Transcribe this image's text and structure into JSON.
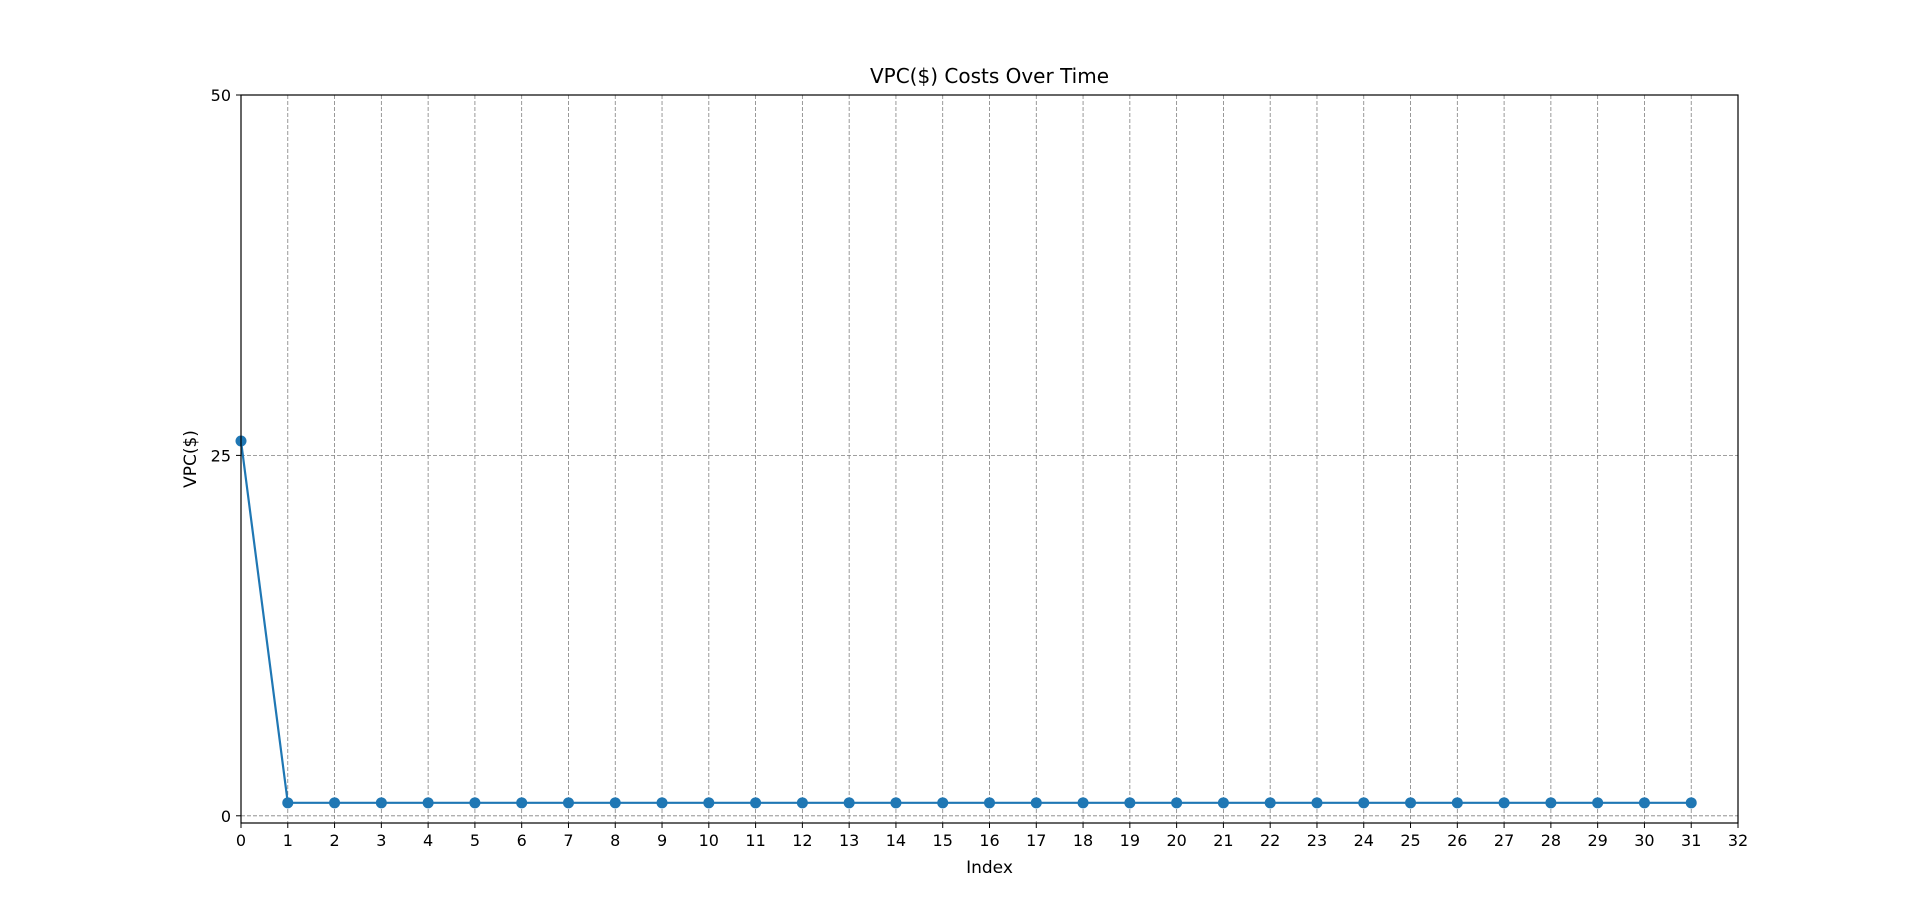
{
  "chart_data": {
    "type": "line",
    "title": "VPC($) Costs Over Time",
    "xlabel": "Index",
    "ylabel": "VPC($)",
    "xlim": [
      0,
      32
    ],
    "ylim": [
      -0.5,
      50
    ],
    "x_ticks": [
      0,
      1,
      2,
      3,
      4,
      5,
      6,
      7,
      8,
      9,
      10,
      11,
      12,
      13,
      14,
      15,
      16,
      17,
      18,
      19,
      20,
      21,
      22,
      23,
      24,
      25,
      26,
      27,
      28,
      29,
      30,
      31,
      32
    ],
    "y_ticks": [
      0,
      25,
      50
    ],
    "grid": true,
    "legend": "none",
    "series": [
      {
        "color": "#1f77b4",
        "marker": "circle",
        "x": [
          0,
          1,
          2,
          3,
          4,
          5,
          6,
          7,
          8,
          9,
          10,
          11,
          12,
          13,
          14,
          15,
          16,
          17,
          18,
          19,
          20,
          21,
          22,
          23,
          24,
          25,
          26,
          27,
          28,
          29,
          30,
          31
        ],
        "values": [
          26,
          0.9,
          0.9,
          0.9,
          0.9,
          0.9,
          0.9,
          0.9,
          0.9,
          0.9,
          0.9,
          0.9,
          0.9,
          0.9,
          0.9,
          0.9,
          0.9,
          0.9,
          0.9,
          0.9,
          0.9,
          0.9,
          0.9,
          0.9,
          0.9,
          0.9,
          0.9,
          0.9,
          0.9,
          0.9,
          0.9,
          0.9
        ]
      }
    ]
  }
}
